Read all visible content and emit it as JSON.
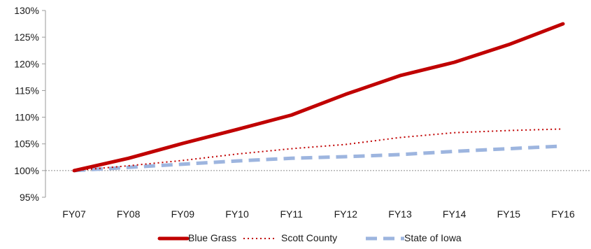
{
  "chart_data": {
    "type": "line",
    "title": "",
    "xlabel": "",
    "ylabel": "",
    "categories": [
      "FY07",
      "FY08",
      "FY09",
      "FY10",
      "FY11",
      "FY12",
      "FY13",
      "FY14",
      "FY15",
      "FY16"
    ],
    "ylim": [
      95,
      130
    ],
    "yticks": [
      95,
      100,
      105,
      110,
      115,
      120,
      125,
      130
    ],
    "ytick_labels": [
      "95%",
      "100%",
      "105%",
      "110%",
      "115%",
      "120%",
      "125%",
      "130%"
    ],
    "reference_line": 100,
    "grid": false,
    "legend_position": "bottom",
    "series": [
      {
        "name": "Blue Grass",
        "color": "#C00000",
        "style": "solid",
        "values": [
          100,
          102.3,
          105.1,
          107.7,
          110.4,
          114.3,
          117.8,
          120.3,
          123.6,
          127.5
        ]
      },
      {
        "name": "Scott County",
        "color": "#C00000",
        "style": "dotted",
        "values": [
          100,
          100.9,
          101.9,
          103.1,
          104.1,
          104.9,
          106.2,
          107.1,
          107.5,
          107.8
        ]
      },
      {
        "name": "State of Iowa",
        "color": "#9DB5DF",
        "style": "dashed",
        "values": [
          100,
          100.6,
          101.2,
          101.8,
          102.3,
          102.6,
          103.0,
          103.6,
          104.1,
          104.6
        ]
      }
    ]
  }
}
